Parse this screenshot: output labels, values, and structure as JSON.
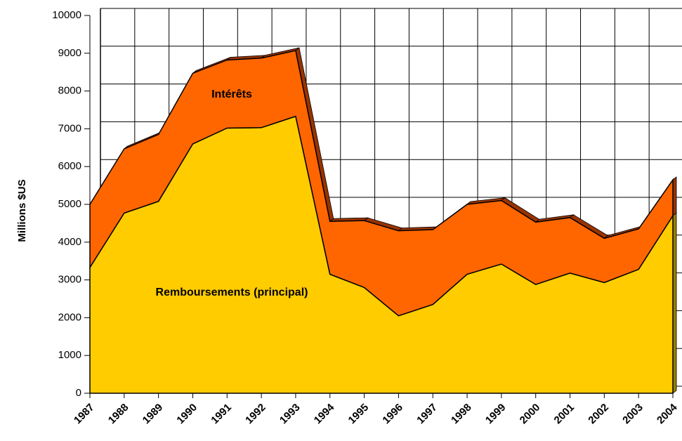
{
  "chart_data": {
    "type": "stacked-area",
    "y_label": "Millions $US",
    "categories": [
      "1987",
      "1988",
      "1989",
      "1990",
      "1991",
      "1992",
      "1993",
      "1994",
      "1995",
      "1996",
      "1997",
      "1998",
      "1999",
      "2000",
      "2001",
      "2002",
      "2003",
      "2004"
    ],
    "series": [
      {
        "name": "Remboursements (principal)",
        "color": "#ffcc00",
        "values": [
          3330,
          4770,
          5080,
          6600,
          7020,
          7030,
          7330,
          3150,
          2800,
          2050,
          2350,
          3150,
          3420,
          2880,
          3180,
          2930,
          3280,
          4700
        ]
      },
      {
        "name": "Intérêts",
        "color": "#ff6600",
        "values": [
          1670,
          1700,
          1770,
          1870,
          1800,
          1840,
          1740,
          1400,
          1770,
          2250,
          1980,
          1850,
          1680,
          1650,
          1470,
          1170,
          1070,
          950
        ]
      }
    ],
    "ylim": [
      0,
      10000
    ],
    "yticks": [
      0,
      1000,
      2000,
      3000,
      4000,
      5000,
      6000,
      7000,
      8000,
      9000,
      10000
    ],
    "grid": true
  }
}
